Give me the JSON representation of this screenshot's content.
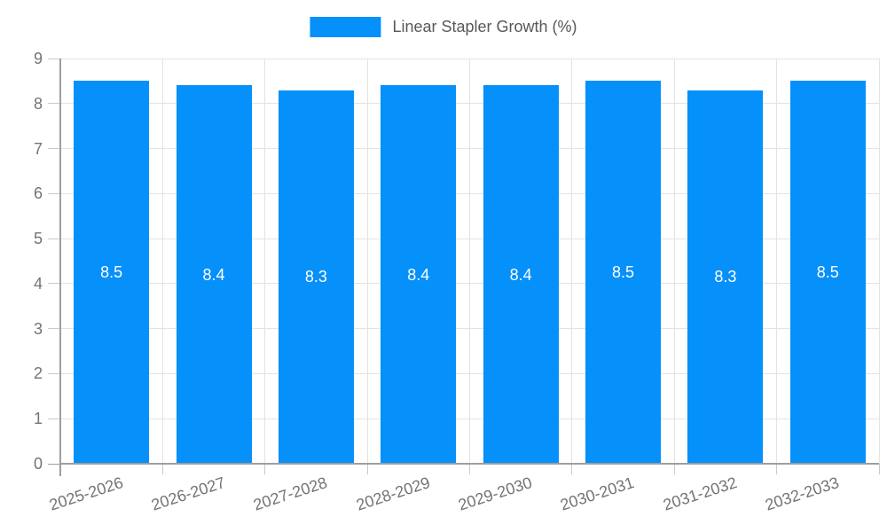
{
  "chart_data": {
    "type": "bar",
    "title": "",
    "legend": "Linear Stapler Growth (%)",
    "legend_position": "top",
    "categories": [
      "2025-2026",
      "2026-2027",
      "2027-2028",
      "2028-2029",
      "2029-2030",
      "2030-2031",
      "2031-2032",
      "2032-2033"
    ],
    "values": [
      8.5,
      8.4,
      8.3,
      8.4,
      8.4,
      8.5,
      8.3,
      8.5
    ],
    "value_labels": [
      "8.5",
      "8.4",
      "8.3",
      "8.4",
      "8.4",
      "8.5",
      "8.3",
      "8.5"
    ],
    "xlabel": "",
    "ylabel": "",
    "ylim": [
      0,
      9
    ],
    "yticks": [
      0,
      1,
      2,
      3,
      4,
      5,
      6,
      7,
      8,
      9
    ],
    "grid": true,
    "colors": {
      "bar": "#0690FA",
      "grid": "#e3e3e3",
      "axis": "#9e9e9e",
      "minor_tick": "#c9c9c9",
      "tick_label": "#737373",
      "legend_text": "#58585a",
      "value_label": "#ffffff",
      "background": "#ffffff"
    }
  }
}
